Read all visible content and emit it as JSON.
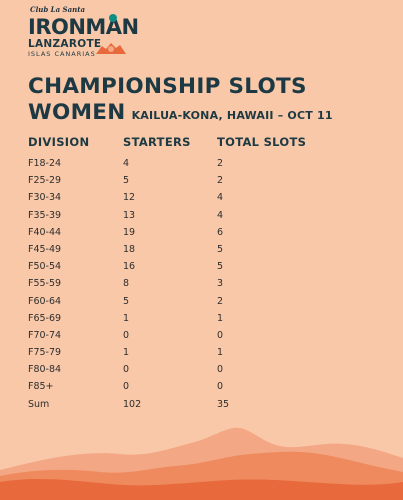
{
  "logo": {
    "club": "Club La Santa",
    "brand": "IRONMAN",
    "location": "LANZAROTE",
    "region": "ISLAS CANARIAS"
  },
  "title": "CHAMPIONSHIP SLOTS",
  "subtitle": "WOMEN",
  "location": "KAILUA-KONA, HAWAII – OCT 11",
  "headers": [
    "DIVISION",
    "STARTERS",
    "TOTAL SLOTS"
  ],
  "rows": [
    [
      "F18-24",
      "4",
      "2"
    ],
    [
      "F25-29",
      "5",
      "2"
    ],
    [
      "F30-34",
      "12",
      "4"
    ],
    [
      "F35-39",
      "13",
      "4"
    ],
    [
      "F40-44",
      "19",
      "6"
    ],
    [
      "F45-49",
      "18",
      "5"
    ],
    [
      "F50-54",
      "16",
      "5"
    ],
    [
      "F55-59",
      "8",
      "3"
    ],
    [
      "F60-64",
      "5",
      "2"
    ],
    [
      "F65-69",
      "1",
      "1"
    ],
    [
      "F70-74",
      "0",
      "0"
    ],
    [
      "F75-79",
      "1",
      "1"
    ],
    [
      "F80-84",
      "0",
      "0"
    ],
    [
      "F85+",
      "0",
      "0"
    ],
    [
      "Sum",
      "102",
      "35"
    ]
  ],
  "colors": {
    "background": "#f9c8a8",
    "heading": "#1d3a44",
    "accent": "#0e8f86",
    "mountain_far": "#f3a784",
    "mountain_mid": "#ee8a5e",
    "mountain_near": "#e86a3c"
  }
}
